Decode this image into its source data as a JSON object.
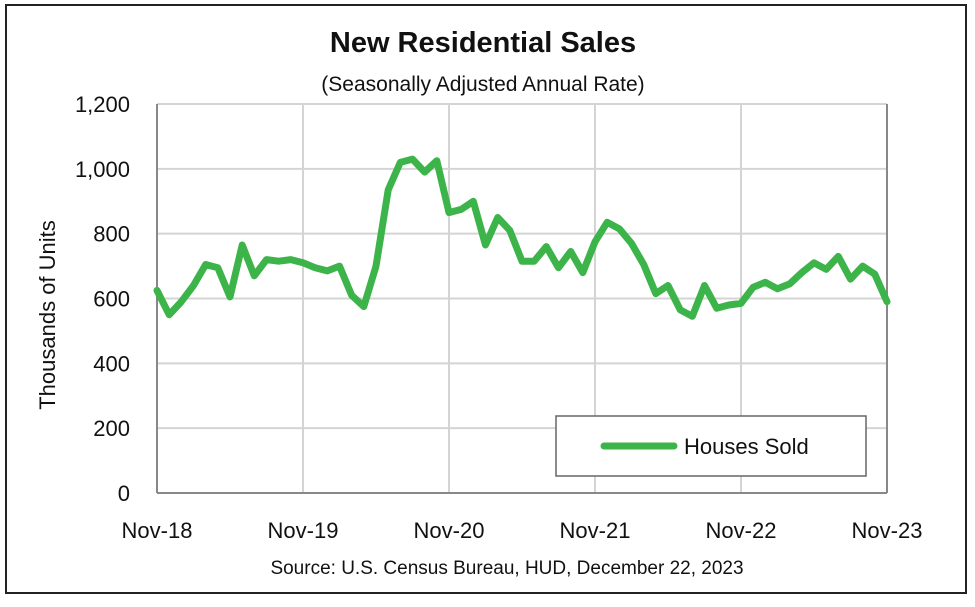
{
  "chart_data": {
    "type": "line",
    "title": "New Residential Sales",
    "subtitle": "(Seasonally Adjusted Annual Rate)",
    "xlabel": "",
    "ylabel": "Thousands of Units",
    "ylim": [
      0,
      1200
    ],
    "yticks": [
      0,
      200,
      400,
      600,
      800,
      1000,
      1200
    ],
    "ytick_labels": [
      "0",
      "200",
      "400",
      "600",
      "800",
      "1,000",
      "1,200"
    ],
    "xtick_labels": [
      "Nov-18",
      "Nov-19",
      "Nov-20",
      "Nov-21",
      "Nov-22",
      "Nov-23"
    ],
    "x_start": "Nov-18",
    "x_end": "Nov-23",
    "x_frequency": "monthly",
    "grid": true,
    "legend_placement": "bottom-right",
    "source": "Source:  U.S. Census Bureau, HUD, December 22, 2023",
    "series": [
      {
        "name": "Houses Sold",
        "color": "#3cb44a",
        "values": [
          625,
          550,
          590,
          640,
          705,
          695,
          605,
          765,
          670,
          720,
          715,
          720,
          710,
          695,
          685,
          700,
          610,
          575,
          700,
          935,
          1020,
          1030,
          990,
          1025,
          865,
          875,
          900,
          765,
          850,
          810,
          715,
          715,
          760,
          695,
          745,
          680,
          775,
          835,
          815,
          770,
          705,
          615,
          640,
          565,
          545,
          640,
          570,
          580,
          585,
          635,
          650,
          630,
          645,
          680,
          710,
          690,
          730,
          660,
          700,
          675,
          590
        ]
      }
    ]
  }
}
